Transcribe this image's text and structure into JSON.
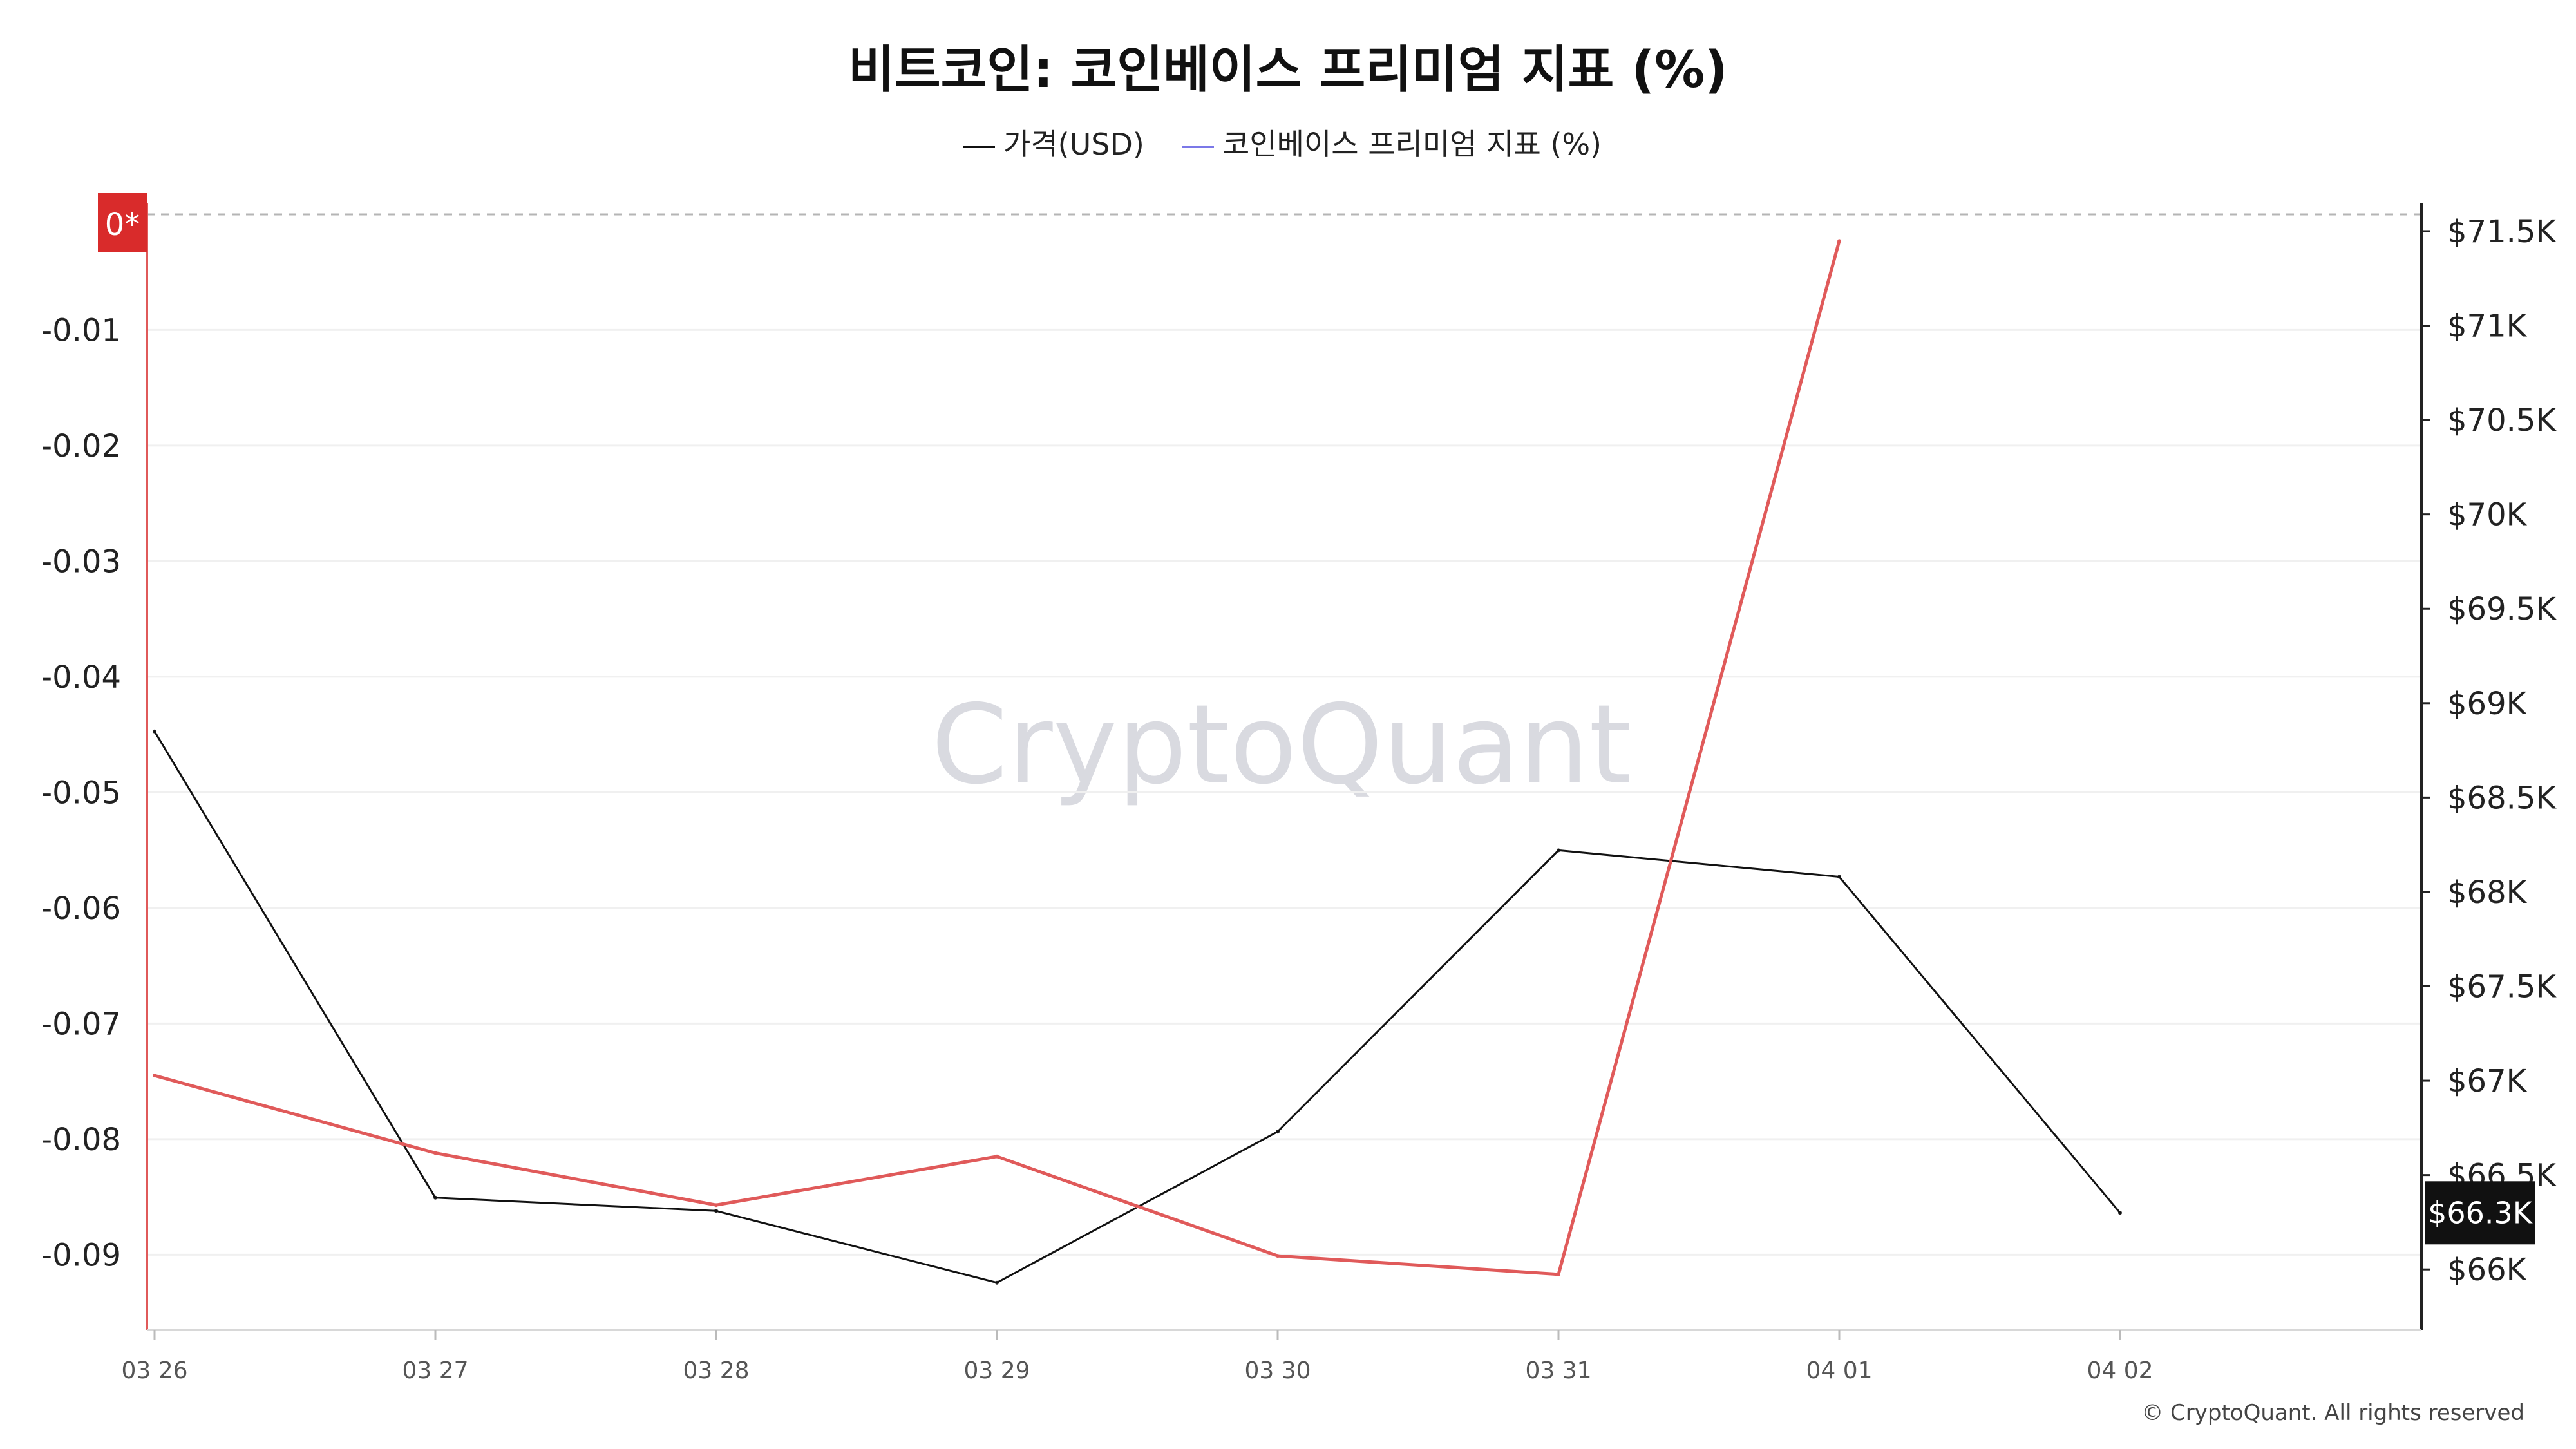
{
  "chart_data": {
    "type": "line",
    "title": "비트코인: 코인베이스 프리미엄 지표 (%)",
    "categories": [
      "03 26",
      "03 27",
      "03 28",
      "03 29",
      "03 30",
      "03 31",
      "04 01",
      "04 02"
    ],
    "series": [
      {
        "name": "가격(USD)",
        "axis": "right",
        "color": "#111111",
        "values": [
          68.85,
          66.38,
          66.31,
          65.93,
          66.73,
          68.22,
          68.08,
          66.3
        ]
      },
      {
        "name": "코인베이스 프리미엄 지표 (%)",
        "axis": "left",
        "color": "#e05a5a",
        "legend_color": "#7b78e8",
        "values": [
          -0.0745,
          -0.0812,
          -0.0857,
          -0.0815,
          -0.0901,
          -0.0917,
          -0.0023,
          null
        ]
      }
    ],
    "left_axis": {
      "ylim": [
        -0.0965,
        0.001
      ],
      "ticks": [
        "0",
        "-0.01",
        "-0.02",
        "-0.03",
        "-0.04",
        "-0.05",
        "-0.06",
        "-0.07",
        "-0.08",
        "-0.09"
      ],
      "tick_values": [
        0,
        -0.01,
        -0.02,
        -0.03,
        -0.04,
        -0.05,
        -0.06,
        -0.07,
        -0.08,
        -0.09
      ],
      "badge_label": "0*",
      "badge_color": "#d92b2b"
    },
    "right_axis": {
      "ylim": [
        65.68,
        71.65
      ],
      "unit": "K USD",
      "ticks": [
        "$71.5K",
        "$71K",
        "$70.5K",
        "$70K",
        "$69.5K",
        "$69K",
        "$68.5K",
        "$68K",
        "$67.5K",
        "$67K",
        "$66.5K",
        "$66K"
      ],
      "tick_values": [
        71.5,
        71,
        70.5,
        70,
        69.5,
        69,
        68.5,
        68,
        67.5,
        67,
        66.5,
        66
      ],
      "current_label": "$66.3K",
      "current_value": 66.3,
      "current_color": "#111111"
    },
    "grid": true,
    "legend_position": "top-center",
    "watermark": "CryptoQuant",
    "copyright": "© CryptoQuant. All rights reserved"
  }
}
